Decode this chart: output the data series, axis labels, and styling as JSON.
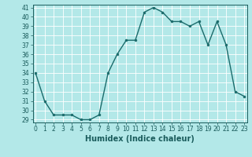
{
  "x": [
    0,
    1,
    2,
    3,
    4,
    5,
    6,
    7,
    8,
    9,
    10,
    11,
    12,
    13,
    14,
    15,
    16,
    17,
    18,
    19,
    20,
    21,
    22,
    23
  ],
  "y": [
    34,
    31,
    29.5,
    29.5,
    29.5,
    29,
    29,
    29.5,
    34,
    36,
    37.5,
    37.5,
    40.5,
    41,
    40.5,
    39.5,
    39.5,
    39,
    39.5,
    37,
    39.5,
    37,
    32,
    31.5
  ],
  "line_color": "#1a6b6b",
  "marker": "o",
  "marker_size": 2.0,
  "bg_color": "#b3e8e8",
  "plot_bg_color": "#b3e8e8",
  "grid_color": "#ffffff",
  "xlabel": "Humidex (Indice chaleur)",
  "ylim_min": 29,
  "ylim_max": 41,
  "xlim_min": 0,
  "xlim_max": 23,
  "yticks": [
    29,
    30,
    31,
    32,
    33,
    34,
    35,
    36,
    37,
    38,
    39,
    40,
    41
  ],
  "xticks": [
    0,
    1,
    2,
    3,
    4,
    5,
    6,
    7,
    8,
    9,
    10,
    11,
    12,
    13,
    14,
    15,
    16,
    17,
    18,
    19,
    20,
    21,
    22,
    23
  ],
  "tick_color": "#1a5c5c",
  "label_fontsize": 7,
  "tick_fontsize": 5.5,
  "line_width": 1.0
}
